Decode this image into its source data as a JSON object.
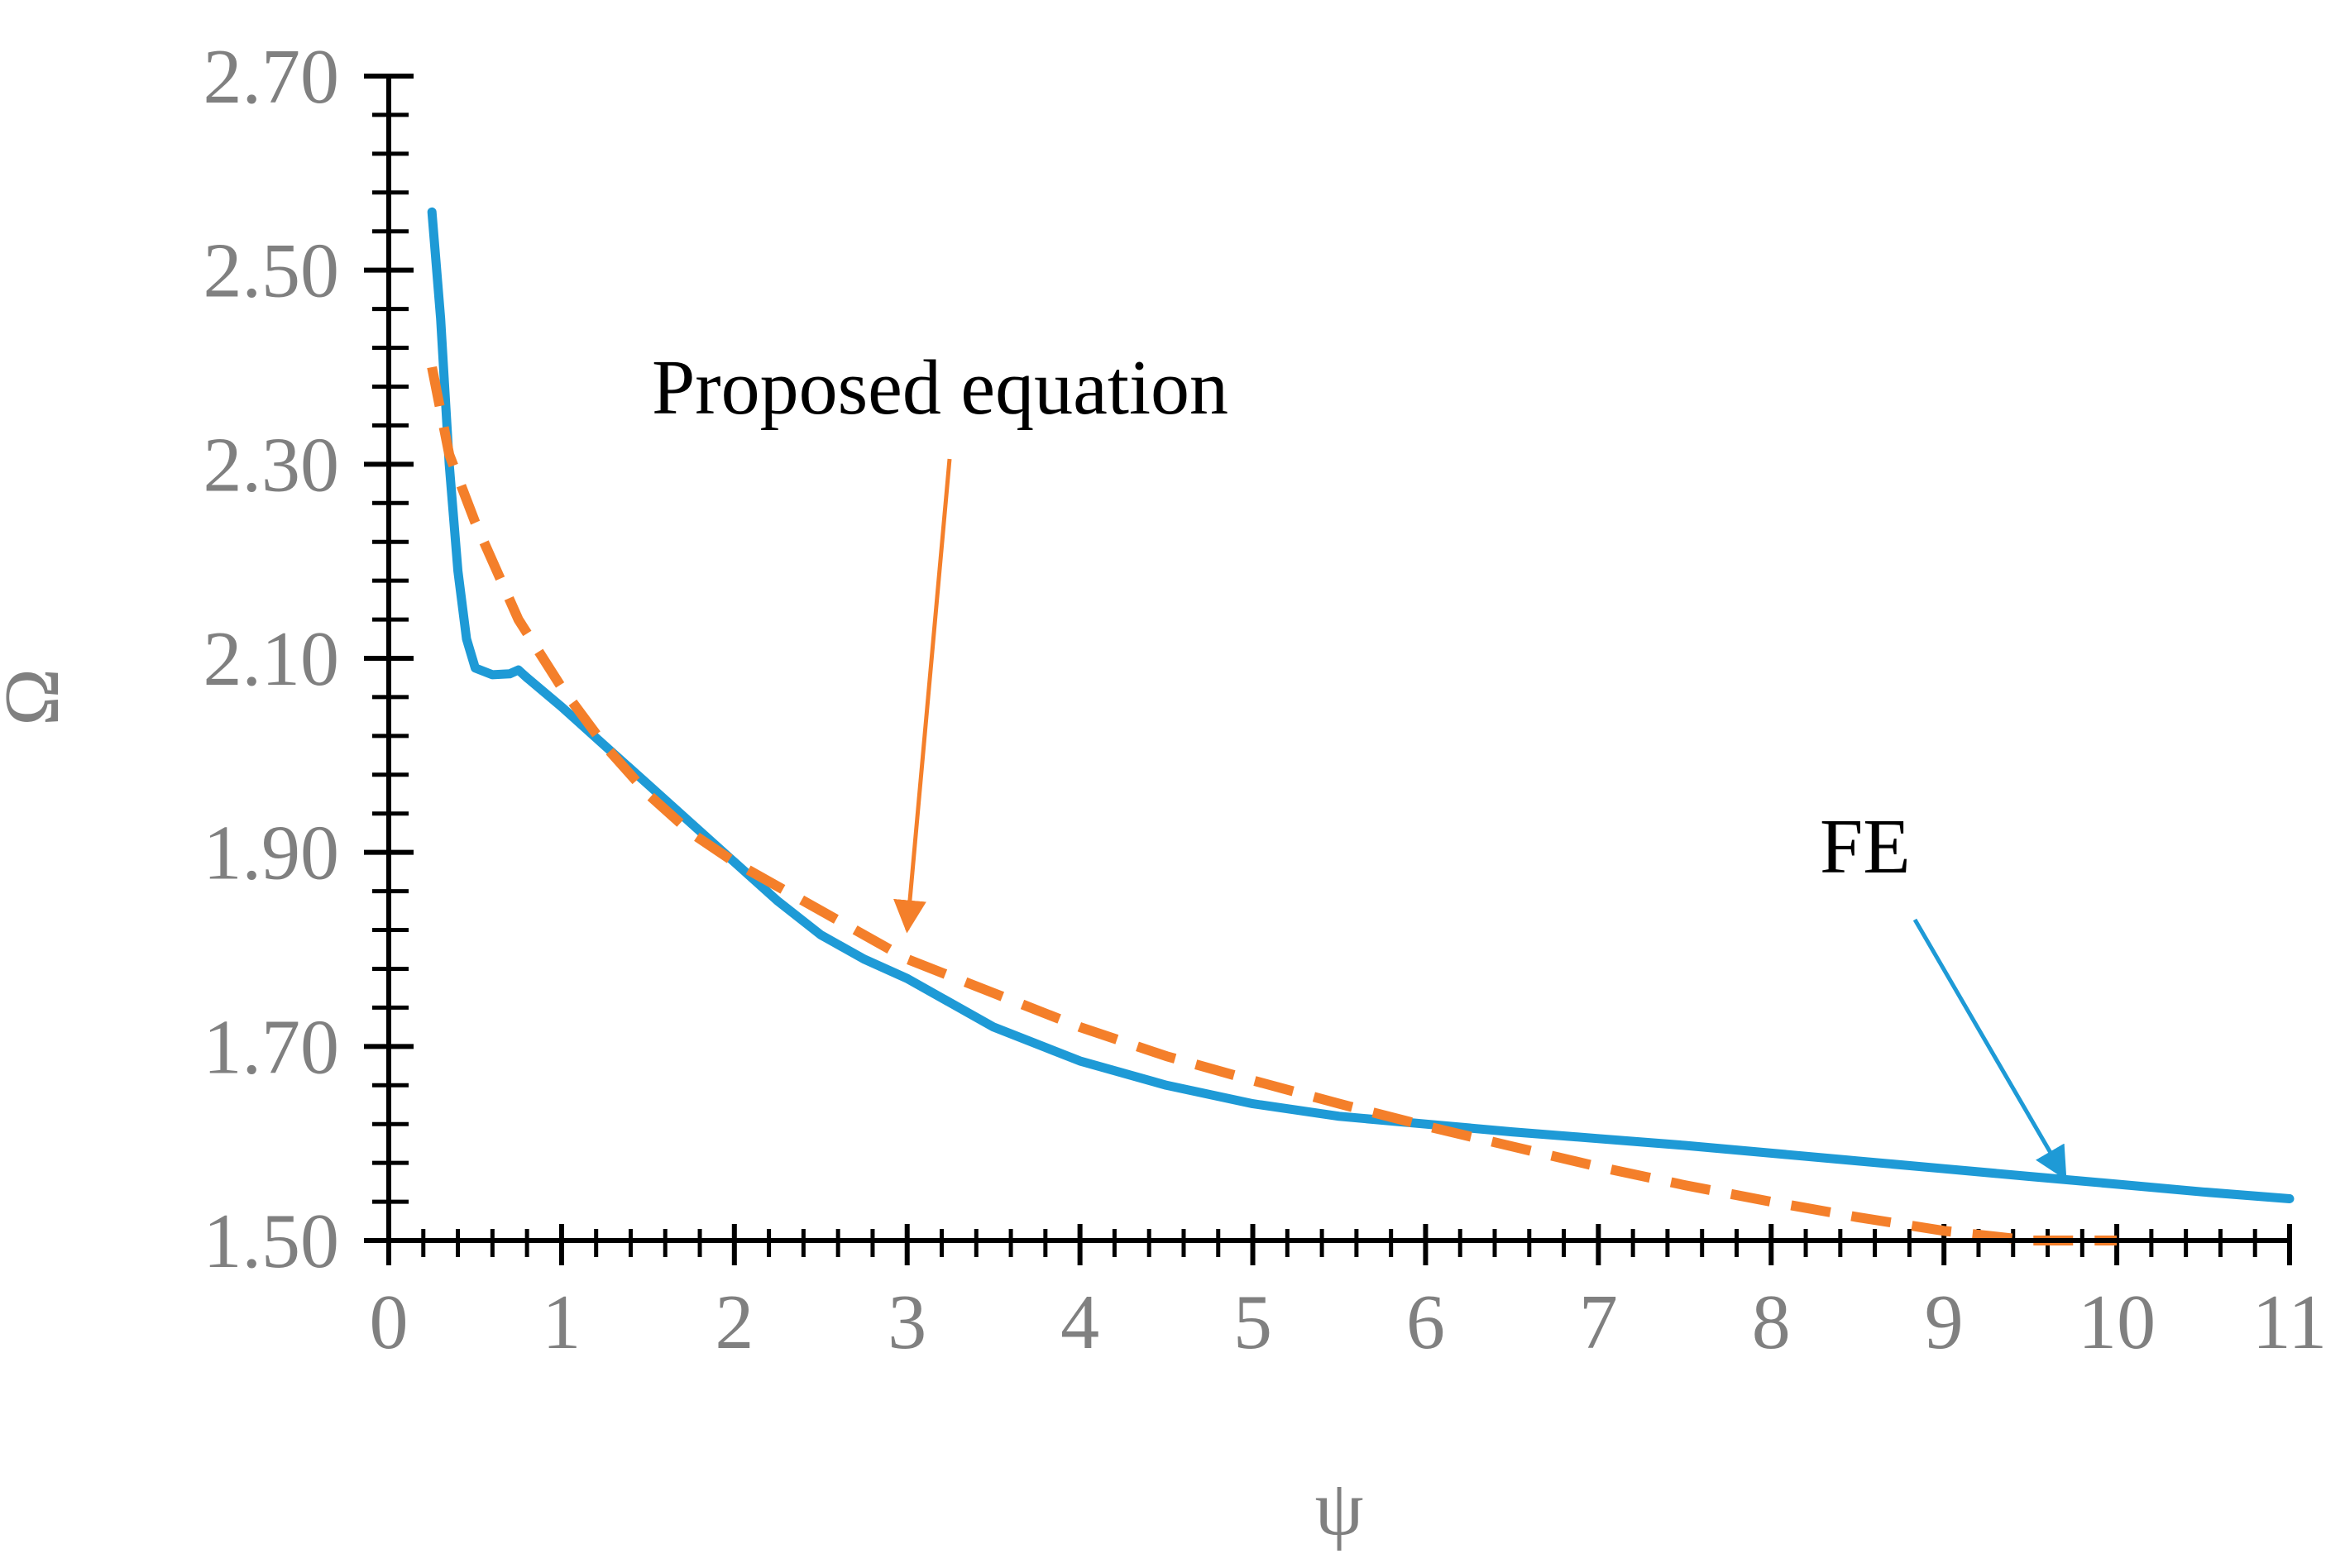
{
  "chart_data": {
    "type": "line",
    "title": "",
    "xlabel": "ψ",
    "ylabel": "Ω",
    "xlim": [
      0,
      11
    ],
    "ylim": [
      1.5,
      2.7
    ],
    "x_ticks": [
      "0",
      "1",
      "2",
      "3",
      "4",
      "5",
      "6",
      "7",
      "8",
      "9",
      "10",
      "11"
    ],
    "y_ticks": [
      "1.50",
      "1.70",
      "1.90",
      "2.10",
      "2.30",
      "2.50",
      "2.70"
    ],
    "grid": false,
    "legend": "none",
    "series": [
      {
        "name": "FE",
        "color": "#1e9ad6",
        "style": "solid",
        "points": [
          [
            0.25,
            2.56
          ],
          [
            0.3,
            2.45
          ],
          [
            0.35,
            2.3
          ],
          [
            0.4,
            2.19
          ],
          [
            0.45,
            2.12
          ],
          [
            0.5,
            2.09
          ],
          [
            0.6,
            2.083
          ],
          [
            0.7,
            2.084
          ],
          [
            0.75,
            2.088
          ],
          [
            0.8,
            2.08
          ],
          [
            1.0,
            2.05
          ],
          [
            1.25,
            2.01
          ],
          [
            1.5,
            1.97
          ],
          [
            1.75,
            1.93
          ],
          [
            2.0,
            1.89
          ],
          [
            2.25,
            1.85
          ],
          [
            2.5,
            1.815
          ],
          [
            2.75,
            1.79
          ],
          [
            3.0,
            1.77
          ],
          [
            3.5,
            1.72
          ],
          [
            4.0,
            1.685
          ],
          [
            4.5,
            1.66
          ],
          [
            5.0,
            1.641
          ],
          [
            5.5,
            1.628
          ],
          [
            6.0,
            1.62
          ],
          [
            6.5,
            1.612
          ],
          [
            7.0,
            1.605
          ],
          [
            7.5,
            1.598
          ],
          [
            8.0,
            1.59
          ],
          [
            8.5,
            1.582
          ],
          [
            9.0,
            1.574
          ],
          [
            9.5,
            1.566
          ],
          [
            10.0,
            1.558
          ],
          [
            10.5,
            1.55
          ],
          [
            11.0,
            1.543
          ]
        ]
      },
      {
        "name": "Proposed equation",
        "color": "#f47f2a",
        "style": "dashed",
        "points": [
          [
            0.25,
            2.4
          ],
          [
            0.35,
            2.31
          ],
          [
            0.5,
            2.24
          ],
          [
            0.75,
            2.14
          ],
          [
            1.0,
            2.07
          ],
          [
            1.25,
            2.01
          ],
          [
            1.5,
            1.96
          ],
          [
            1.75,
            1.92
          ],
          [
            2.0,
            1.89
          ],
          [
            2.5,
            1.84
          ],
          [
            3.0,
            1.79
          ],
          [
            3.5,
            1.755
          ],
          [
            4.0,
            1.72
          ],
          [
            4.5,
            1.69
          ],
          [
            5.0,
            1.665
          ],
          [
            5.5,
            1.641
          ],
          [
            6.0,
            1.618
          ],
          [
            6.5,
            1.597
          ],
          [
            7.0,
            1.576
          ],
          [
            7.5,
            1.557
          ],
          [
            8.0,
            1.54
          ],
          [
            8.5,
            1.524
          ],
          [
            9.0,
            1.51
          ],
          [
            9.5,
            1.5
          ],
          [
            10.0,
            1.5
          ]
        ]
      }
    ],
    "annotations": [
      {
        "text": "Proposed equation",
        "arrow_color": "#f47f2a",
        "points_to": [
          3.0,
          1.82
        ]
      },
      {
        "text": "FE",
        "arrow_color": "#1e9ad6",
        "points_to": [
          9.7,
          1.565
        ]
      }
    ]
  }
}
